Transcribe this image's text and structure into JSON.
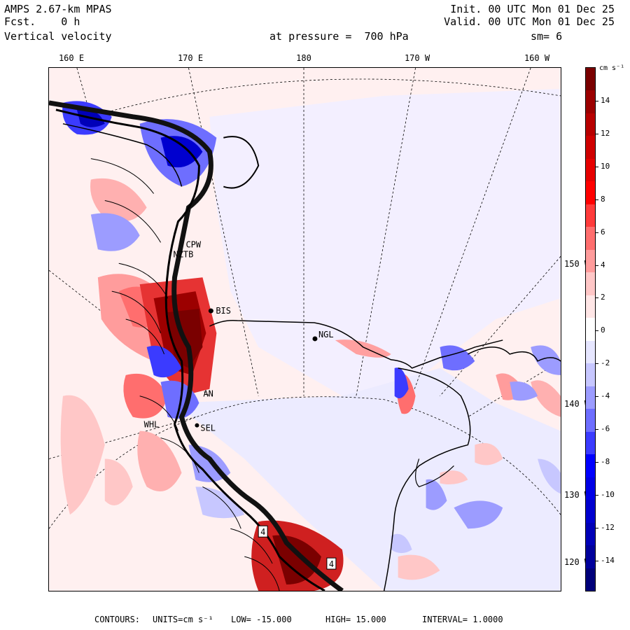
{
  "header": {
    "model": "AMPS 2.67-km MPAS",
    "fcst_label": "Fcst.",
    "fcst_value": "0 h",
    "field": "Vertical velocity",
    "init": "Init. 00 UTC Mon 01 Dec 25",
    "valid": "Valid. 00 UTC Mon 01 Dec 25",
    "pressure_label": "at pressure =",
    "pressure_value": "700 hPa",
    "smooth": "sm= 6"
  },
  "map": {
    "longitude_labels": [
      "160 E",
      "170 E",
      "180",
      "170 W",
      "160 W"
    ],
    "latitude_labels": [
      "150 W",
      "140 W",
      "130 W",
      "120 W"
    ],
    "stations": [
      {
        "id": "CPW"
      },
      {
        "id": "NZTB"
      },
      {
        "id": "BIS"
      },
      {
        "id": "NGL"
      },
      {
        "id": "AN"
      },
      {
        "id": "WHL"
      },
      {
        "id": "SEL"
      }
    ],
    "contour_number_boxes": [
      "4",
      "4"
    ]
  },
  "colorbar": {
    "unit": "cm s⁻¹",
    "levels": [
      "14",
      "12",
      "10",
      "8",
      "6",
      "4",
      "2",
      "0",
      "-2",
      "-4",
      "-6",
      "-8",
      "-10",
      "-12",
      "-14"
    ],
    "colors_top_to_bottom": [
      "#7a0000",
      "#9c0000",
      "#b80000",
      "#cf0000",
      "#e60000",
      "#ff0000",
      "#ff3b3b",
      "#ff6e6e",
      "#ff9c9c",
      "#ffc7c7",
      "#ffe6e6",
      "#ffffff",
      "#e6e6ff",
      "#c7c7ff",
      "#9c9cff",
      "#6e6eff",
      "#3b3bff",
      "#0000ff",
      "#0000e6",
      "#0000cf",
      "#0000b8",
      "#00009c",
      "#00007a"
    ]
  },
  "footer": {
    "contours": "CONTOURS:",
    "units": "UNITS=cm s⁻¹",
    "low": "LOW= -15.000",
    "high": "HIGH= 15.000",
    "interval": "INTERVAL= 1.0000"
  }
}
